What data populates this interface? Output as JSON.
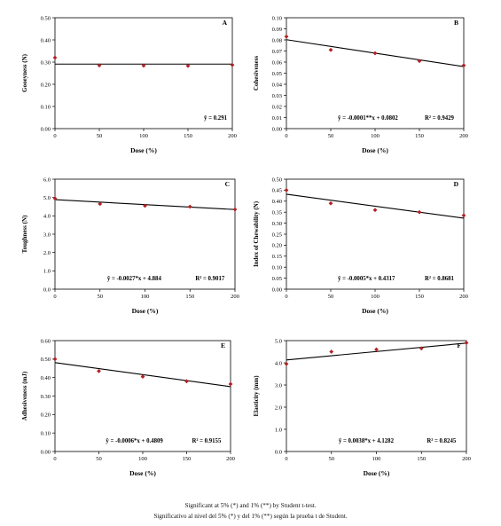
{
  "chart_data": [
    {
      "type": "scatter",
      "panel": "A",
      "xlabel": "Dose (%)",
      "ylabel": "Gooeyness (N)",
      "xlim": [
        0,
        200
      ],
      "ylim": [
        0,
        0.5
      ],
      "xticks": [
        "0",
        "50",
        "100",
        "150",
        "200"
      ],
      "yticks": [
        "0.00",
        "0.10",
        "0.20",
        "0.30",
        "0.40",
        "0.50"
      ],
      "points": [
        [
          0,
          0.32
        ],
        [
          50,
          0.285
        ],
        [
          100,
          0.284
        ],
        [
          150,
          0.283
        ],
        [
          200,
          0.287
        ]
      ],
      "fit": {
        "slope": 0,
        "intercept": 0.291
      },
      "equation": "ȳ = 0.291",
      "r2": ""
    },
    {
      "type": "scatter",
      "panel": "B",
      "xlabel": "Dose (%)",
      "ylabel": "Cohesiveness",
      "xlim": [
        0,
        200
      ],
      "ylim": [
        0,
        0.1
      ],
      "xticks": [
        "0",
        "50",
        "100",
        "150",
        "200"
      ],
      "yticks": [
        "0.00",
        "0.01",
        "0.02",
        "0.03",
        "0.04",
        "0.05",
        "0.06",
        "0.07",
        "0.08",
        "0.09",
        "0.10"
      ],
      "points": [
        [
          0,
          0.083
        ],
        [
          50,
          0.071
        ],
        [
          100,
          0.068
        ],
        [
          150,
          0.061
        ],
        [
          200,
          0.057
        ]
      ],
      "fit": {
        "slope": -0.0001214,
        "intercept": 0.0802
      },
      "equation": "ŷ = -0.0001**x + 0.0802",
      "r2": "R² = 0.9429"
    },
    {
      "type": "scatter",
      "panel": "C",
      "xlabel": "Dose (%)",
      "ylabel": "Toughness (N)",
      "xlim": [
        0,
        200
      ],
      "ylim": [
        0,
        6
      ],
      "xticks": [
        "0",
        "50",
        "100",
        "150",
        "200"
      ],
      "yticks": [
        "0.0",
        "1.0",
        "2.0",
        "3.0",
        "4.0",
        "5.0",
        "6.0"
      ],
      "points": [
        [
          0,
          4.95
        ],
        [
          50,
          4.65
        ],
        [
          100,
          4.55
        ],
        [
          150,
          4.5
        ],
        [
          200,
          4.35
        ]
      ],
      "fit": {
        "slope": -0.0027,
        "intercept": 4.884
      },
      "equation": "ŷ = -0.0027*x + 4.884",
      "r2": "R² = 0.9017"
    },
    {
      "type": "scatter",
      "panel": "D",
      "xlabel": "Dose (%)",
      "ylabel": "Index of Chewability (N)",
      "xlim": [
        0,
        200
      ],
      "ylim": [
        0,
        0.5
      ],
      "xticks": [
        "0",
        "50",
        "100",
        "150",
        "200"
      ],
      "yticks": [
        "0.00",
        "0.05",
        "0.10",
        "0.15",
        "0.20",
        "0.25",
        "0.30",
        "0.35",
        "0.40",
        "0.45",
        "0.50"
      ],
      "points": [
        [
          0,
          0.45
        ],
        [
          50,
          0.39
        ],
        [
          100,
          0.36
        ],
        [
          150,
          0.35
        ],
        [
          200,
          0.335
        ]
      ],
      "fit": {
        "slope": -0.000545,
        "intercept": 0.4317
      },
      "equation": "ŷ = -0.0005*x + 0.4317",
      "r2": "R² = 0.8681"
    },
    {
      "type": "scatter",
      "panel": "E",
      "xlabel": "Dose (%)",
      "ylabel": "Adhesiveness (mJ)",
      "xlim": [
        0,
        200
      ],
      "ylim": [
        0,
        0.6
      ],
      "xticks": [
        "0",
        "50",
        "100",
        "150",
        "200"
      ],
      "yticks": [
        "0.00",
        "0.10",
        "0.20",
        "0.30",
        "0.40",
        "0.50",
        "0.60"
      ],
      "points": [
        [
          0,
          0.5
        ],
        [
          50,
          0.435
        ],
        [
          100,
          0.405
        ],
        [
          150,
          0.38
        ],
        [
          200,
          0.365
        ]
      ],
      "fit": {
        "slope": -0.00065,
        "intercept": 0.4809
      },
      "equation": "ŷ = -0.0006*x + 0.4809",
      "r2": "R² = 0.9155"
    },
    {
      "type": "scatter",
      "panel": "F",
      "xlabel": "Dose (%)",
      "ylabel": "Elasticity (mm)",
      "xlim": [
        0,
        200
      ],
      "ylim": [
        0,
        5
      ],
      "xticks": [
        "0",
        "50",
        "100",
        "150",
        "200"
      ],
      "yticks": [
        "0.0",
        "1.0",
        "2.0",
        "3.0",
        "4.0",
        "5.0"
      ],
      "points": [
        [
          0,
          3.95
        ],
        [
          50,
          4.5
        ],
        [
          100,
          4.6
        ],
        [
          150,
          4.65
        ],
        [
          200,
          4.9
        ]
      ],
      "fit": {
        "slope": 0.0038,
        "intercept": 4.1282
      },
      "equation": "ŷ = 0.0038*x + 4.1282",
      "r2": "R² = 0.8245"
    }
  ],
  "colors": {
    "marker": "#b22222",
    "line": "#000000",
    "axis": "#000000"
  },
  "footnote": {
    "line1": "Significant at 5% (*) and 1% (**) by  Student t-test.",
    "line2": "Significativo al nivel del 5% (*) y del 1% (**) según la prueba t de Student."
  }
}
